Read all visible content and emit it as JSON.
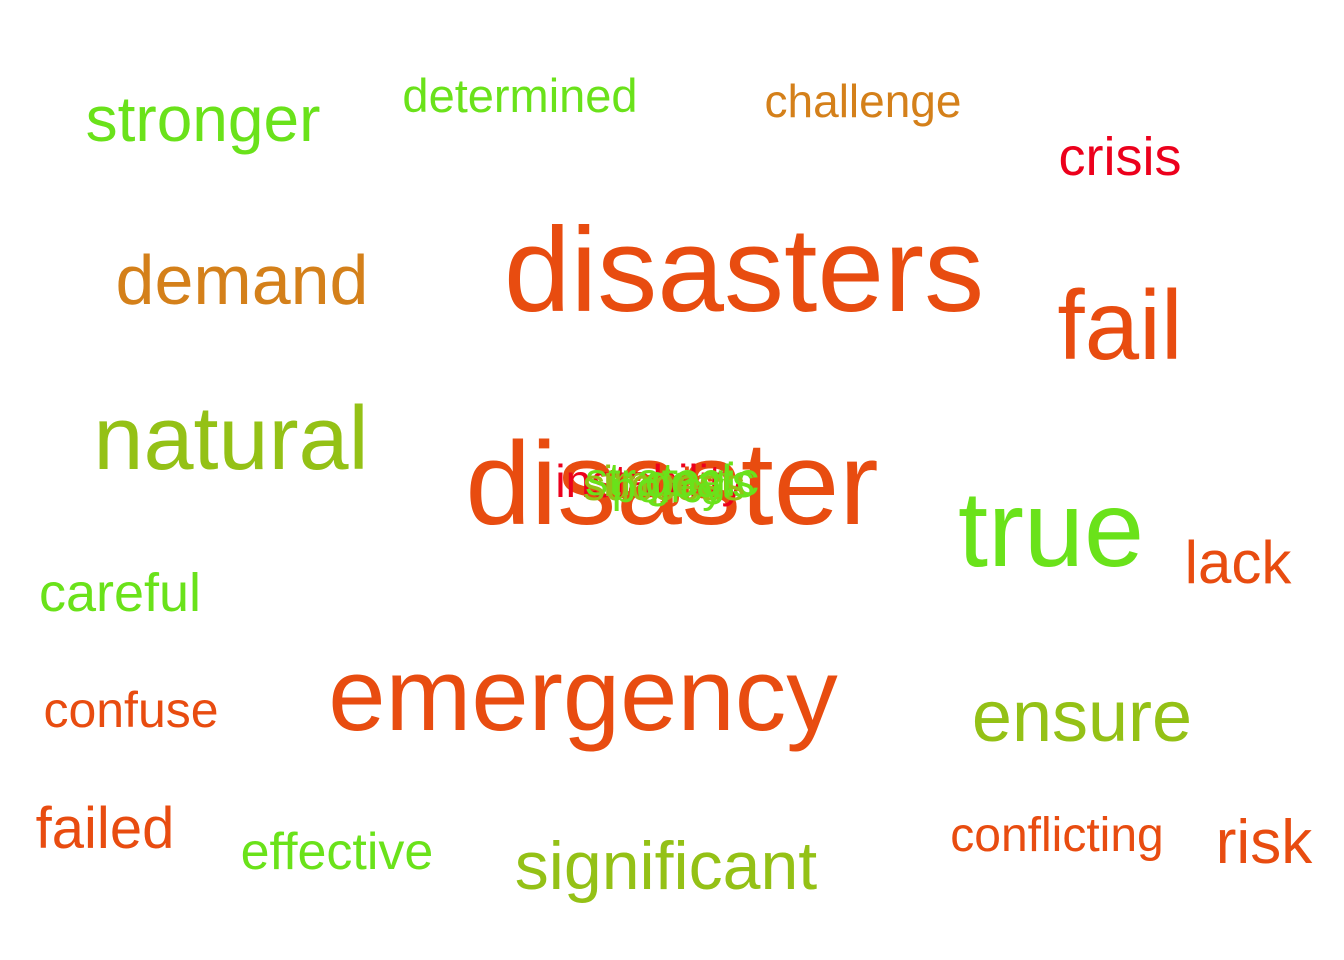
{
  "colors": {
    "background": "#ffffff",
    "red": "#ec001c",
    "orange_red": "#e84c10",
    "orange": "#d4801a",
    "yellow_green": "#94c116",
    "green": "#6ae21a"
  },
  "words": [
    {
      "text": "stronger",
      "color": "#6ae21a"
    },
    {
      "text": "determined",
      "color": "#6ae21a"
    },
    {
      "text": "challenge",
      "color": "#d4801a"
    },
    {
      "text": "crisis",
      "color": "#ec001c"
    },
    {
      "text": "demand",
      "color": "#d4801a"
    },
    {
      "text": "disasters",
      "color": "#e84c10"
    },
    {
      "text": "fail",
      "color": "#e84c10"
    },
    {
      "text": "natural",
      "color": "#94c116"
    },
    {
      "text": "disaster",
      "color": "#e84c10"
    },
    {
      "text": "true",
      "color": "#6ae21a"
    },
    {
      "text": "lack",
      "color": "#e84c10"
    },
    {
      "text": "careful",
      "color": "#6ae21a"
    },
    {
      "text": "emergency",
      "color": "#e84c10"
    },
    {
      "text": "confuse",
      "color": "#e84c10"
    },
    {
      "text": "ensure",
      "color": "#94c116"
    },
    {
      "text": "failed",
      "color": "#e84c10"
    },
    {
      "text": "effective",
      "color": "#6ae21a"
    },
    {
      "text": "significant",
      "color": "#94c116"
    },
    {
      "text": "conflicting",
      "color": "#e84c10"
    },
    {
      "text": "risk",
      "color": "#e84c10"
    },
    {
      "text": "instability",
      "color": "#ec001c"
    },
    {
      "text": "tragic",
      "color": "#e84c10"
    },
    {
      "text": "impact",
      "color": "#94c116"
    },
    {
      "text": "strategic",
      "color": "#6ae21a"
    },
    {
      "text": "success",
      "color": "#94c116"
    },
    {
      "text": "policy",
      "color": "#6ae21a"
    },
    {
      "text": "goals",
      "color": "#6ae21a"
    }
  ]
}
